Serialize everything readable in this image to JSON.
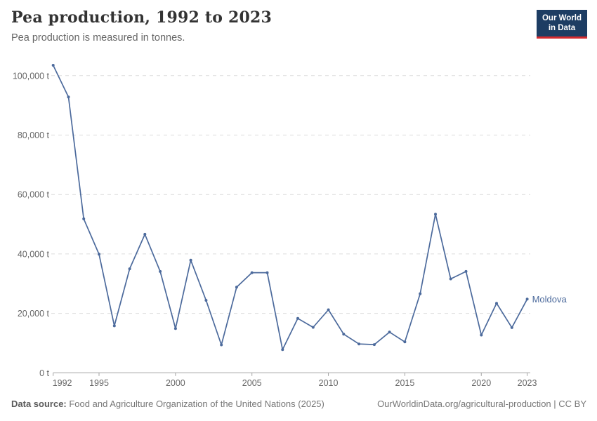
{
  "header": {
    "title": "Pea production, 1992 to 2023",
    "subtitle": "Pea production is measured in tonnes."
  },
  "logo": {
    "line1": "Our World",
    "line2": "in Data",
    "bg_color": "#1d3d63",
    "accent_color": "#d42b2f",
    "text_color": "#ffffff"
  },
  "chart_data": {
    "type": "line",
    "title": "Pea production, 1992 to 2023",
    "unit": "tonnes",
    "x": [
      1992,
      1993,
      1994,
      1995,
      1996,
      1997,
      1998,
      1999,
      2000,
      2001,
      2002,
      2003,
      2004,
      2005,
      2006,
      2007,
      2008,
      2009,
      2010,
      2011,
      2012,
      2013,
      2014,
      2015,
      2016,
      2017,
      2018,
      2019,
      2020,
      2021,
      2022,
      2023
    ],
    "series": [
      {
        "name": "Moldova",
        "color": "#4C6A9C",
        "values": [
          103500,
          92800,
          51800,
          39900,
          15800,
          35000,
          46600,
          34100,
          14900,
          37900,
          24400,
          9400,
          28800,
          33700,
          33700,
          7800,
          18300,
          15300,
          21200,
          13000,
          9700,
          9500,
          13700,
          10400,
          26600,
          53400,
          31600,
          34100,
          12700,
          23400,
          15200,
          24800
        ]
      }
    ],
    "x_ticks": [
      1992,
      1995,
      2000,
      2005,
      2010,
      2015,
      2020,
      2023
    ],
    "y_ticks": [
      0,
      20000,
      40000,
      60000,
      80000,
      100000
    ],
    "y_tick_labels": [
      "0 t",
      "20,000 t",
      "40,000 t",
      "60,000 t",
      "80,000 t",
      "100,000 t"
    ],
    "xlim": [
      1992,
      2023
    ],
    "ylim": [
      0,
      100000
    ],
    "grid": true,
    "legend_position": "end-of-line",
    "end_label": "Moldova"
  },
  "footer": {
    "source_label": "Data source:",
    "source_text": " Food and Agriculture Organization of the United Nations (2025)",
    "credit": "OurWorldinData.org/agricultural-production | CC BY"
  }
}
